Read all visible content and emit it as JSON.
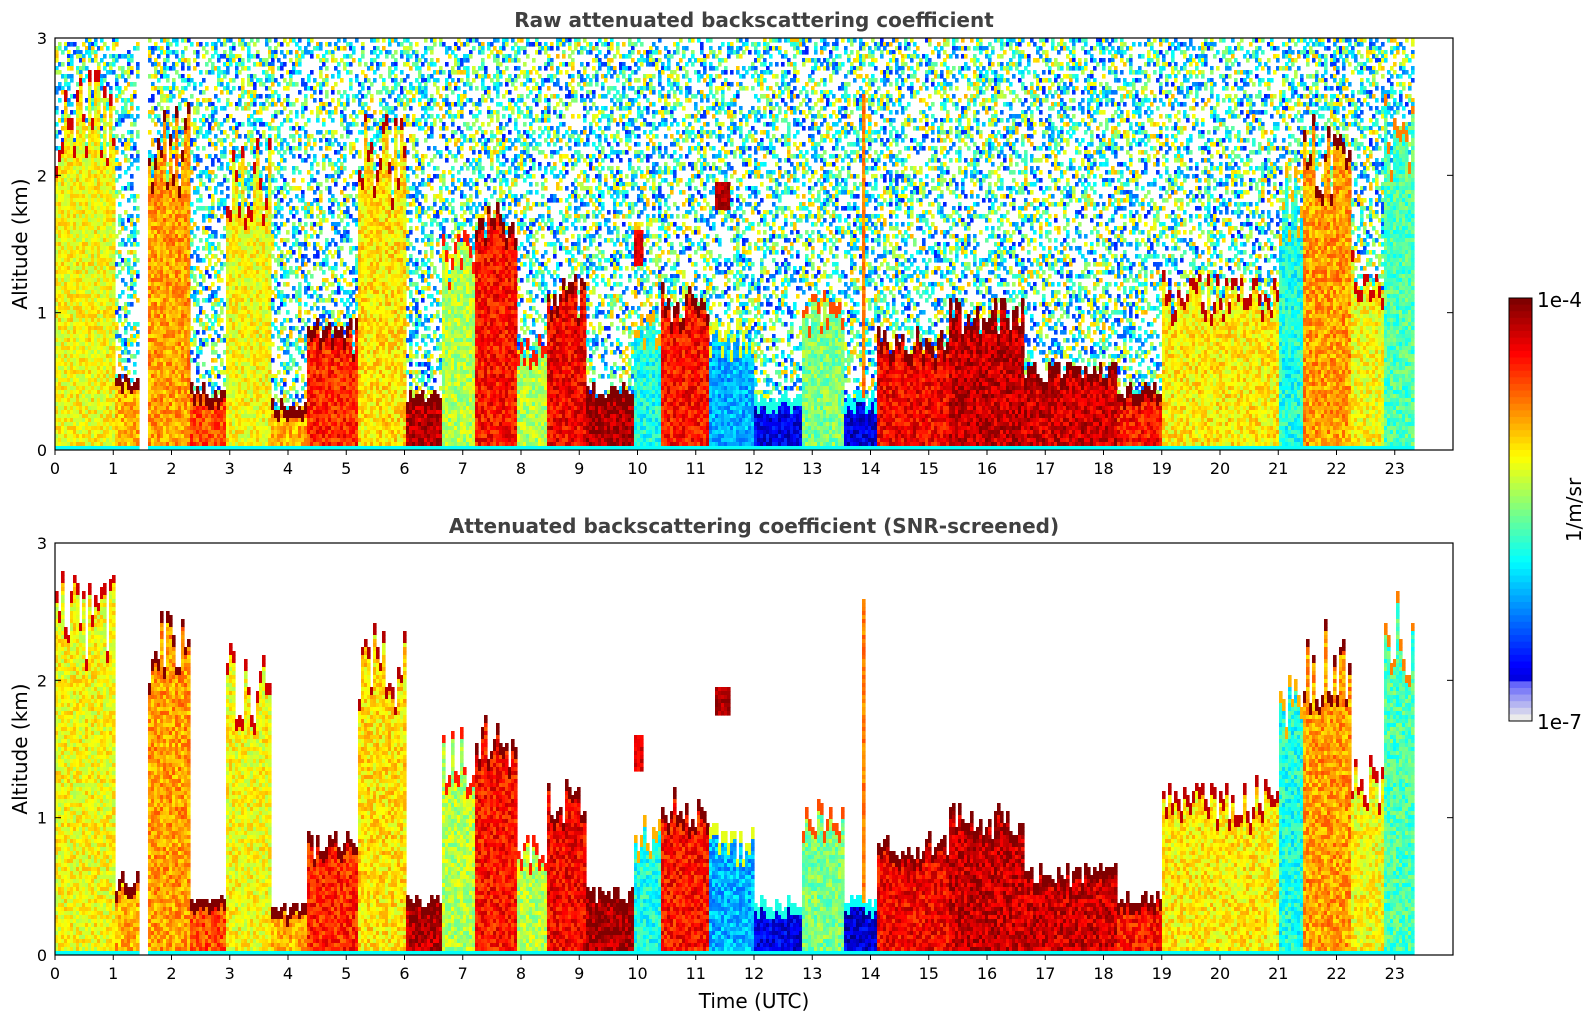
{
  "chart_data": [
    {
      "type": "heatmap",
      "title": "Raw attenuated backscattering coefficient",
      "xlabel": "",
      "ylabel": "Altitude (km)",
      "xlim": [
        0,
        24
      ],
      "ylim": [
        0,
        3
      ],
      "x_tick_labels": [
        "0",
        "1",
        "2",
        "3",
        "4",
        "5",
        "6",
        "7",
        "8",
        "9",
        "10",
        "11",
        "12",
        "13",
        "14",
        "15",
        "16",
        "17",
        "18",
        "19",
        "20",
        "21",
        "22",
        "23"
      ],
      "y_tick_labels": [
        "0",
        "1",
        "2",
        "3"
      ],
      "data_coverage_hours": [
        0,
        23.3
      ],
      "missing_data_hours": [
        [
          1.43,
          1.55
        ]
      ],
      "screened": false,
      "layers": [
        {
          "t0": 0.0,
          "t1": 1.0,
          "top": 2.45,
          "level": 0.62
        },
        {
          "t0": 1.0,
          "t1": 1.4,
          "top": 0.55,
          "level": 0.7
        },
        {
          "t0": 1.55,
          "t1": 2.3,
          "top": 2.25,
          "level": 0.72
        },
        {
          "t0": 2.3,
          "t1": 2.9,
          "top": 0.45,
          "level": 0.8
        },
        {
          "t0": 2.9,
          "t1": 3.7,
          "top": 2.0,
          "level": 0.62
        },
        {
          "t0": 3.7,
          "t1": 4.3,
          "top": 0.35,
          "level": 0.7
        },
        {
          "t0": 4.3,
          "t1": 5.2,
          "top": 0.85,
          "level": 0.84
        },
        {
          "t0": 5.2,
          "t1": 6.0,
          "top": 2.15,
          "level": 0.65
        },
        {
          "t0": 6.0,
          "t1": 6.6,
          "top": 0.4,
          "level": 0.95
        },
        {
          "t0": 6.6,
          "t1": 7.2,
          "top": 1.45,
          "level": 0.55
        },
        {
          "t0": 7.2,
          "t1": 7.9,
          "top": 1.6,
          "level": 0.86
        },
        {
          "t0": 7.9,
          "t1": 8.4,
          "top": 0.8,
          "level": 0.55
        },
        {
          "t0": 8.4,
          "t1": 9.1,
          "top": 1.15,
          "level": 0.88
        },
        {
          "t0": 9.1,
          "t1": 9.9,
          "top": 0.45,
          "level": 0.96
        },
        {
          "t0": 9.9,
          "t1": 10.4,
          "top": 0.9,
          "level": 0.4
        },
        {
          "t0": 10.4,
          "t1": 11.2,
          "top": 1.1,
          "level": 0.86
        },
        {
          "t0": 11.2,
          "t1": 12.0,
          "top": 0.85,
          "level": 0.3
        },
        {
          "t0": 12.0,
          "t1": 12.8,
          "top": 0.4,
          "level": 0.1
        },
        {
          "t0": 12.8,
          "t1": 13.5,
          "top": 1.05,
          "level": 0.5
        },
        {
          "t0": 13.5,
          "t1": 14.1,
          "top": 0.4,
          "level": 0.08
        },
        {
          "t0": 14.1,
          "t1": 15.3,
          "top": 0.8,
          "level": 0.88
        },
        {
          "t0": 15.3,
          "t1": 16.6,
          "top": 1.0,
          "level": 0.93
        },
        {
          "t0": 16.6,
          "t1": 18.2,
          "top": 0.6,
          "level": 0.92
        },
        {
          "t0": 18.2,
          "t1": 19.0,
          "top": 0.45,
          "level": 0.86
        },
        {
          "t0": 19.0,
          "t1": 21.0,
          "top": 1.15,
          "level": 0.64
        },
        {
          "t0": 21.0,
          "t1": 21.4,
          "top": 1.85,
          "level": 0.4
        },
        {
          "t0": 21.4,
          "t1": 22.2,
          "top": 2.15,
          "level": 0.72
        },
        {
          "t0": 22.2,
          "t1": 22.8,
          "top": 1.3,
          "level": 0.62
        },
        {
          "t0": 22.8,
          "t1": 23.3,
          "top": 2.35,
          "level": 0.45
        }
      ],
      "elevated_features": [
        {
          "t": 11.45,
          "half_width": 0.12,
          "bottom": 1.75,
          "top": 1.97,
          "level": 0.95
        },
        {
          "t": 10.0,
          "half_width": 0.08,
          "bottom": 1.35,
          "top": 1.62,
          "level": 0.9
        },
        {
          "t": 13.85,
          "half_width": 0.04,
          "bottom": 0.4,
          "top": 2.6,
          "level": 0.75
        }
      ]
    },
    {
      "type": "heatmap",
      "title": "Attenuated backscattering coefficient (SNR-screened)",
      "xlabel": "Time (UTC)",
      "ylabel": "Altitude (km)",
      "xlim": [
        0,
        24
      ],
      "ylim": [
        0,
        3
      ],
      "x_tick_labels": [
        "0",
        "1",
        "2",
        "3",
        "4",
        "5",
        "6",
        "7",
        "8",
        "9",
        "10",
        "11",
        "12",
        "13",
        "14",
        "15",
        "16",
        "17",
        "18",
        "19",
        "20",
        "21",
        "22",
        "23"
      ],
      "y_tick_labels": [
        "0",
        "1",
        "2",
        "3"
      ],
      "data_coverage_hours": [
        0,
        23.3
      ],
      "missing_data_hours": [
        [
          1.43,
          1.55
        ]
      ],
      "screened": true,
      "layers": "same as raw panel, with low-SNR pixels removed"
    }
  ],
  "colorbar": {
    "label": "1/m/sr",
    "max_label": "1e-4",
    "min_label": "1e-7",
    "scale": "log",
    "colormap": "jet",
    "range": [
      1e-07,
      0.0001
    ]
  }
}
